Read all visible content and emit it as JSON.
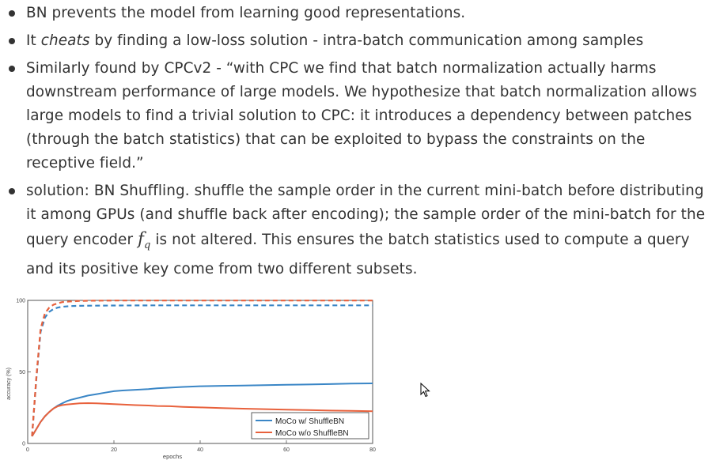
{
  "bullets": [
    {
      "text": "BN prevents the model from learning good representations."
    },
    {
      "pre": "It ",
      "em": "cheats",
      "post": " by finding a low-loss solution - intra-batch communication among samples"
    },
    {
      "text": "Similarly found by CPCv2 - “with CPC we find that batch normalization actually harms downstream performance of large models. We hypothesize that batch normalization allows large models to find a trivial solution to CPC: it introduces a dependency between patches (through the batch statistics) that can be exploited to bypass the constraints on the receptive field.”"
    },
    {
      "pre": "solution: BN Shuffling. shuffle the sample order in the current mini-batch before distributing it among GPUs (and shuffle back after encoding); the sample order of the mini-batch for the query encoder ",
      "math_base": "f",
      "math_sub": "q",
      "post": " is not altered. This ensures the batch statistics used to compute a query and its positive key come from two different subsets."
    }
  ],
  "chart_data": {
    "type": "line",
    "xlabel": "epochs",
    "ylabel": "accuracy (%)",
    "xlim": [
      0,
      80
    ],
    "ylim": [
      0,
      100
    ],
    "xticks": [
      0,
      20,
      40,
      60,
      80
    ],
    "yticks": [
      0,
      50,
      100
    ],
    "grid": false,
    "legend_position": "bottom-right",
    "series": [
      {
        "name": "MoCo w/ ShuffleBN",
        "color": "#3a86c6",
        "style": "solid",
        "x": [
          1,
          2,
          3,
          4,
          5,
          6,
          7,
          8,
          9,
          10,
          12,
          14,
          16,
          18,
          20,
          22,
          25,
          28,
          30,
          33,
          36,
          40,
          45,
          50,
          55,
          60,
          65,
          70,
          75,
          80
        ],
        "y": [
          5,
          10,
          15,
          19,
          22,
          24.5,
          26.5,
          28,
          29.5,
          30.5,
          32,
          33.5,
          34.5,
          35.5,
          36.5,
          37,
          37.5,
          38,
          38.5,
          39,
          39.5,
          40,
          40.3,
          40.5,
          40.8,
          41,
          41.2,
          41.5,
          41.8,
          42
        ]
      },
      {
        "name": "MoCo w/o ShuffleBN",
        "color": "#e8613c",
        "style": "solid",
        "x": [
          1,
          2,
          3,
          4,
          5,
          6,
          7,
          8,
          9,
          10,
          12,
          14,
          16,
          18,
          20,
          22,
          25,
          28,
          30,
          33,
          36,
          40,
          45,
          50,
          55,
          60,
          65,
          70,
          75,
          80
        ],
        "y": [
          5,
          10,
          15,
          19,
          22,
          24.5,
          26,
          26.8,
          27.2,
          27.5,
          28,
          28.2,
          28,
          27.8,
          27.5,
          27.2,
          26.8,
          26.5,
          26.2,
          26,
          25.6,
          25.2,
          24.7,
          24.3,
          24,
          23.6,
          23.3,
          23,
          22.8,
          22.5
        ]
      },
      {
        "name": "",
        "color": "#3a86c6",
        "style": "dashed",
        "x": [
          1,
          2,
          3,
          4,
          5,
          6,
          7,
          8,
          10,
          12,
          15,
          20,
          30,
          40,
          50,
          60,
          70,
          80
        ],
        "y": [
          5,
          45,
          78,
          88,
          92,
          94,
          95,
          95.5,
          96,
          96.2,
          96.3,
          96.4,
          96.5,
          96.5,
          96.5,
          96.5,
          96.5,
          96.5
        ]
      },
      {
        "name": "",
        "color": "#e8613c",
        "style": "dashed",
        "x": [
          1,
          2,
          3,
          4,
          5,
          6,
          7,
          8,
          10,
          12,
          15,
          20,
          30,
          40,
          50,
          60,
          70,
          80
        ],
        "y": [
          5,
          46,
          80,
          91,
          95,
          97,
          98,
          98.8,
          99.3,
          99.6,
          99.8,
          99.9,
          99.9,
          99.9,
          99.9,
          99.9,
          99.9,
          99.9
        ]
      }
    ]
  }
}
